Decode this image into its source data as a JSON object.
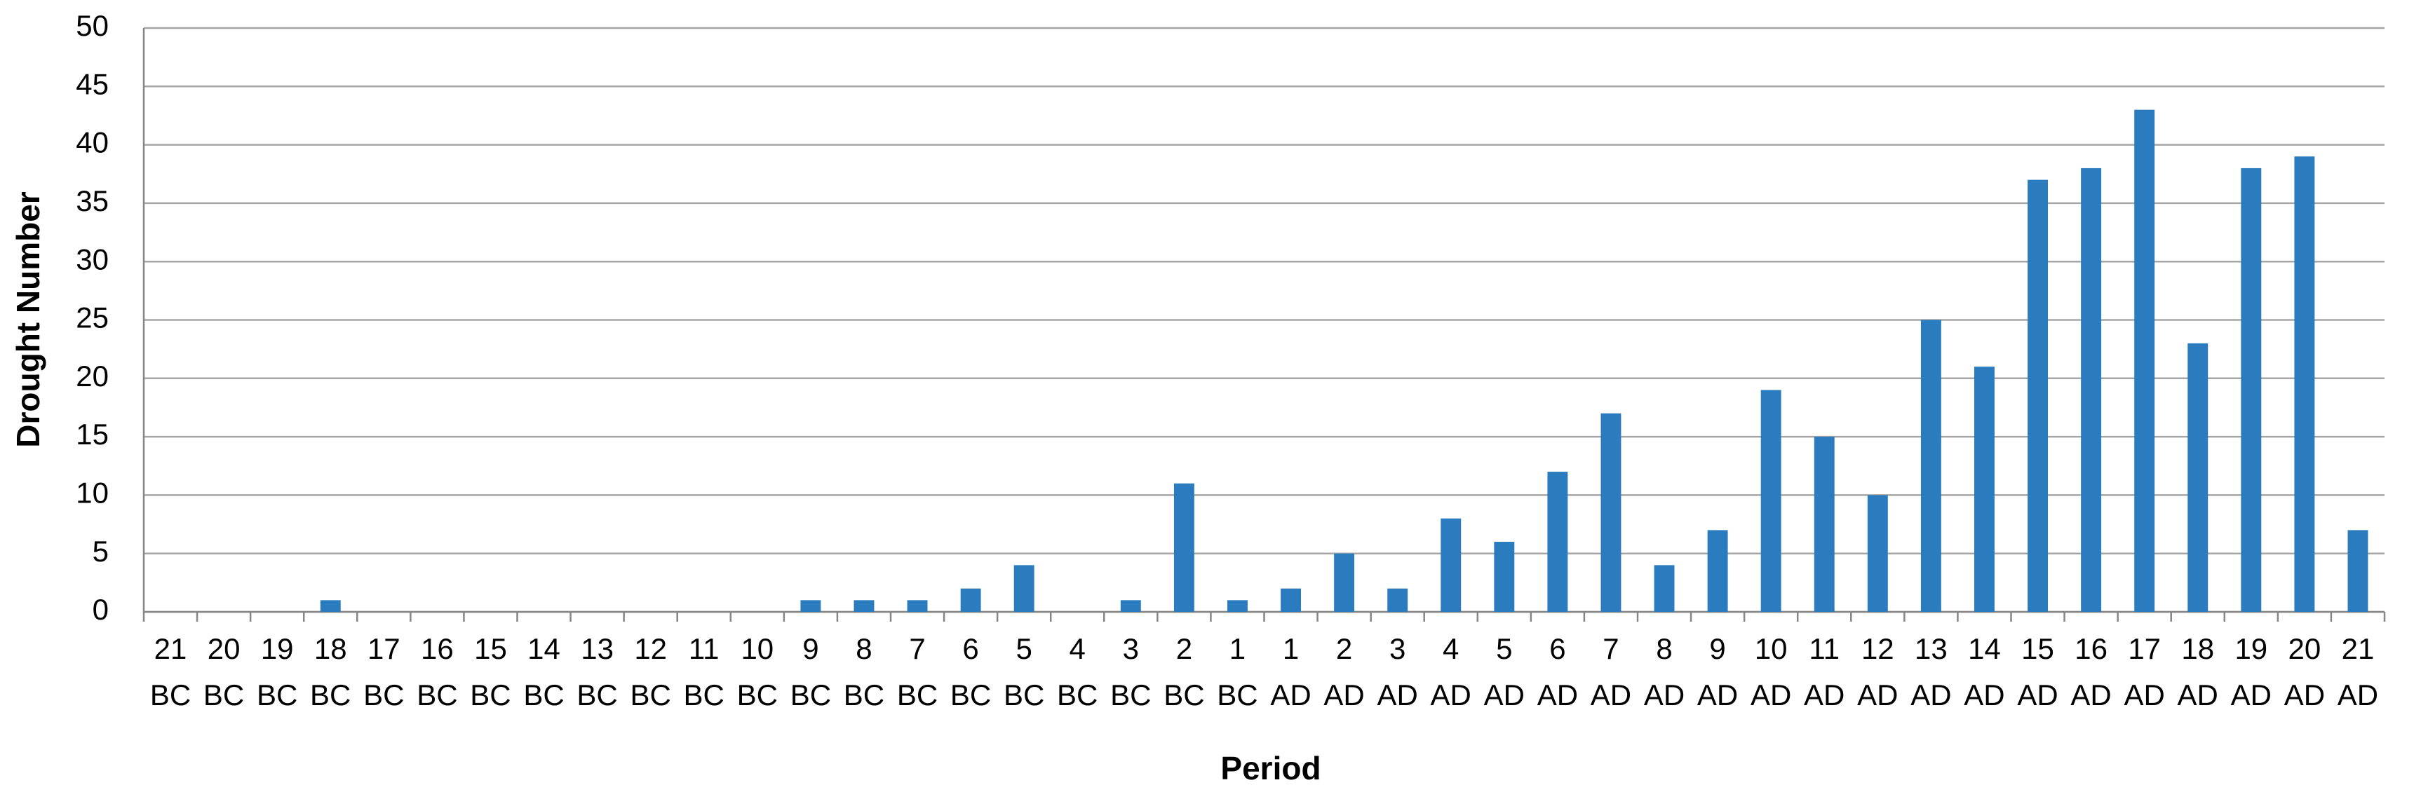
{
  "chart_data": {
    "type": "bar",
    "x_label": "Period",
    "y_label": "Drought Number",
    "categories": [
      "21 BC",
      "20 BC",
      "19 BC",
      "18 BC",
      "17 BC",
      "16 BC",
      "15 BC",
      "14 BC",
      "13 BC",
      "12 BC",
      "11 BC",
      "10 BC",
      "9 BC",
      "8 BC",
      "7 BC",
      "6 BC",
      "5 BC",
      "4 BC",
      "3 BC",
      "2 BC",
      "1 BC",
      "1 AD",
      "2 AD",
      "3 AD",
      "4 AD",
      "5 AD",
      "6 AD",
      "7 AD",
      "8 AD",
      "9 AD",
      "10 AD",
      "11 AD",
      "12 AD",
      "13 AD",
      "14 AD",
      "15 AD",
      "16 AD",
      "17 AD",
      "18 AD",
      "19 AD",
      "20 AD",
      "21 AD"
    ],
    "values": [
      0,
      0,
      0,
      1,
      0,
      0,
      0,
      0,
      0,
      0,
      0,
      0,
      1,
      1,
      1,
      2,
      4,
      0,
      1,
      11,
      1,
      2,
      5,
      2,
      8,
      6,
      12,
      17,
      4,
      7,
      19,
      15,
      10,
      25,
      21,
      37,
      38,
      43,
      23,
      38,
      39,
      7
    ],
    "color": "#2a7cbf",
    "ylim": [
      0,
      50
    ],
    "yticks": [
      0,
      5,
      10,
      15,
      20,
      25,
      30,
      35,
      40,
      45,
      50
    ],
    "grid": true
  }
}
